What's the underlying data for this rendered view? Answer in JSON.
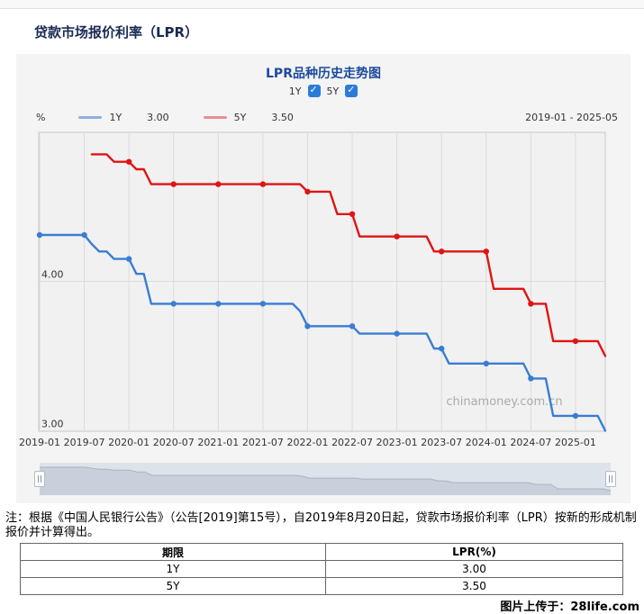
{
  "page": {
    "title": "贷款市场报价利率（LPR）",
    "credit": "图片上传于：28life.com"
  },
  "chart": {
    "title": "LPR品种历史走势图",
    "checkboxes": [
      {
        "label": "1Y",
        "checked": true
      },
      {
        "label": "5Y",
        "checked": true
      }
    ],
    "unit_label": "%",
    "legend": [
      {
        "label": "1Y",
        "value": "3.00",
        "swatch_color": "#8fb0e0"
      },
      {
        "label": "5Y",
        "value": "3.50",
        "swatch_color": "#e89090"
      }
    ],
    "date_range": "2019-01 - 2025-05",
    "watermark": "chinamoney.com.cn"
  },
  "chart_data": {
    "type": "line",
    "title": "LPR品种历史走势图",
    "ylabel": "%",
    "ylim": [
      3.0,
      5.0
    ],
    "y_tick_labels": [
      "4.00",
      "3.00"
    ],
    "y_tick_values": [
      4.0,
      3.0
    ],
    "x_range": [
      "2019-01",
      "2025-05"
    ],
    "x_tick_labels": [
      "2019-01",
      "2019-07",
      "2020-01",
      "2020-07",
      "2021-01",
      "2021-07",
      "2022-01",
      "2022-07",
      "2023-01",
      "2023-07",
      "2024-01",
      "2024-07",
      "2025-01"
    ],
    "marker_months": [
      1,
      7
    ],
    "series": [
      {
        "name": "1Y",
        "color": "#3a7dd2",
        "start": "2019-01",
        "monthly_values": [
          4.31,
          4.31,
          4.31,
          4.31,
          4.31,
          4.31,
          4.31,
          4.25,
          4.2,
          4.2,
          4.15,
          4.15,
          4.15,
          4.05,
          4.05,
          3.85,
          3.85,
          3.85,
          3.85,
          3.85,
          3.85,
          3.85,
          3.85,
          3.85,
          3.85,
          3.85,
          3.85,
          3.85,
          3.85,
          3.85,
          3.85,
          3.85,
          3.85,
          3.85,
          3.85,
          3.8,
          3.7,
          3.7,
          3.7,
          3.7,
          3.7,
          3.7,
          3.7,
          3.65,
          3.65,
          3.65,
          3.65,
          3.65,
          3.65,
          3.65,
          3.65,
          3.65,
          3.65,
          3.55,
          3.55,
          3.45,
          3.45,
          3.45,
          3.45,
          3.45,
          3.45,
          3.45,
          3.45,
          3.45,
          3.45,
          3.45,
          3.35,
          3.35,
          3.35,
          3.1,
          3.1,
          3.1,
          3.1,
          3.1,
          3.1,
          3.1,
          3.0
        ]
      },
      {
        "name": "5Y",
        "color": "#e01414",
        "start": "2019-08",
        "monthly_values": [
          4.85,
          4.85,
          4.85,
          4.8,
          4.8,
          4.8,
          4.75,
          4.75,
          4.65,
          4.65,
          4.65,
          4.65,
          4.65,
          4.65,
          4.65,
          4.65,
          4.65,
          4.65,
          4.65,
          4.65,
          4.65,
          4.65,
          4.65,
          4.65,
          4.65,
          4.65,
          4.65,
          4.65,
          4.65,
          4.6,
          4.6,
          4.6,
          4.6,
          4.45,
          4.45,
          4.45,
          4.3,
          4.3,
          4.3,
          4.3,
          4.3,
          4.3,
          4.3,
          4.3,
          4.3,
          4.3,
          4.2,
          4.2,
          4.2,
          4.2,
          4.2,
          4.2,
          4.2,
          4.2,
          3.95,
          3.95,
          3.95,
          3.95,
          3.95,
          3.85,
          3.85,
          3.85,
          3.6,
          3.6,
          3.6,
          3.6,
          3.6,
          3.6,
          3.6,
          3.5
        ]
      }
    ]
  },
  "note": "注：根据《中国人民银行公告》（公告[2019]第15号），自2019年8月20日起，贷款市场报价利率（LPR）按新的形成机制报价并计算得出。",
  "table": {
    "headers": [
      "期限",
      "LPR(%)"
    ],
    "rows": [
      [
        "1Y",
        "3.00"
      ],
      [
        "5Y",
        "3.50"
      ]
    ]
  }
}
